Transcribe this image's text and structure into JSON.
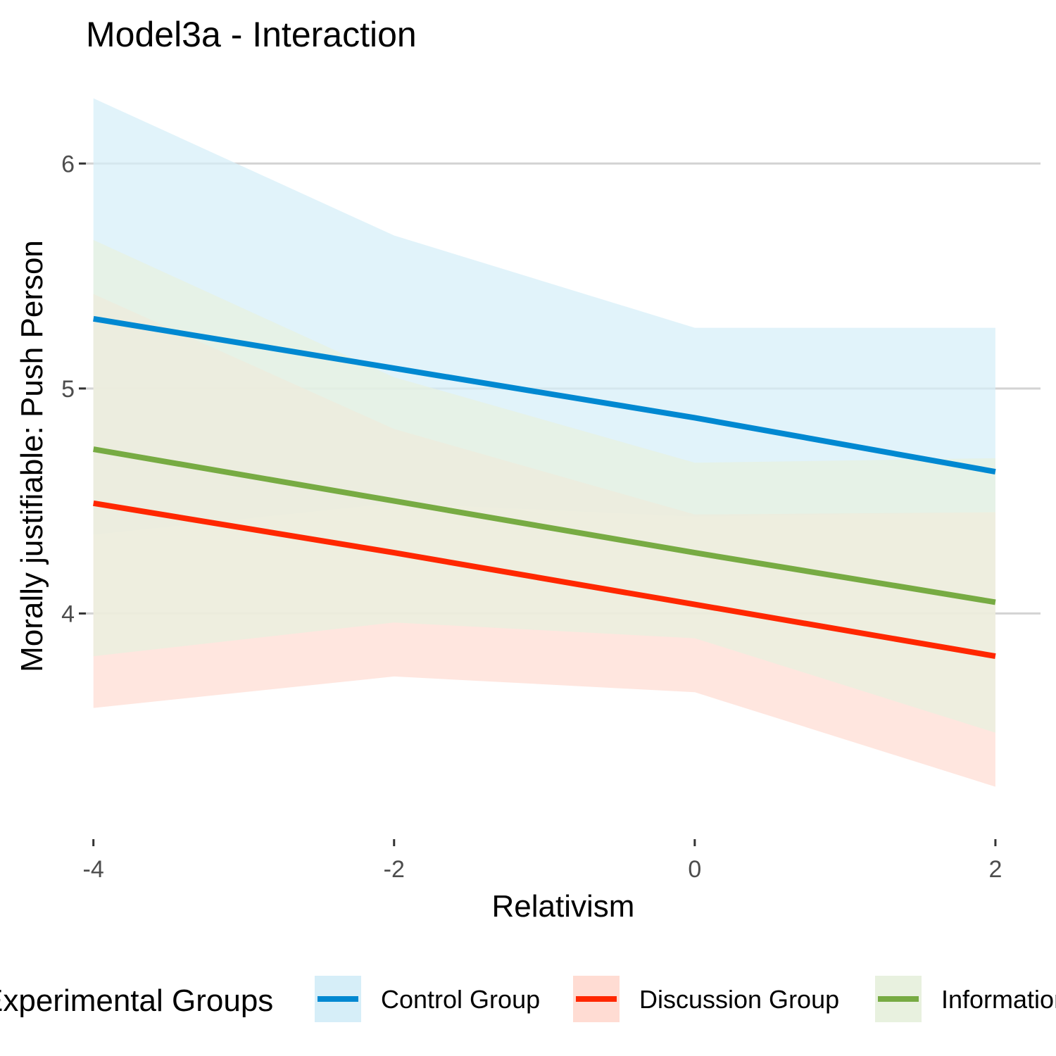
{
  "chart_data": {
    "type": "line",
    "title": "Model3a - Interaction",
    "xlabel": "Relativism",
    "ylabel": "Morally justifiable: Push Person",
    "x": [
      -4,
      -2,
      0,
      2
    ],
    "xlim": [
      -4.05,
      2.3
    ],
    "ylim": [
      3.05,
      6.32
    ],
    "x_ticks": [
      -4,
      -2,
      0,
      2
    ],
    "x_tick_labels": [
      "-4",
      "-2",
      "0",
      "2"
    ],
    "y_ticks": [
      4,
      5,
      6
    ],
    "y_tick_labels": [
      "4",
      "5",
      "6"
    ],
    "grid": "horizontal major",
    "legend": {
      "position": "bottom",
      "title": "Experimental Groups"
    },
    "series": [
      {
        "name": "Control Group",
        "color": "#0088d1",
        "fill": "#d6eef8",
        "values": [
          5.31,
          5.09,
          4.87,
          4.63
        ],
        "lower": [
          4.35,
          4.49,
          4.43,
          4.45
        ],
        "upper": [
          6.29,
          5.68,
          5.27,
          5.27
        ]
      },
      {
        "name": "Discussion Group",
        "color": "#ff2700",
        "fill": "#ffdcd3",
        "values": [
          4.49,
          4.27,
          4.04,
          3.81
        ],
        "lower": [
          3.58,
          3.72,
          3.65,
          3.23
        ],
        "upper": [
          5.42,
          4.82,
          4.44,
          4.45
        ]
      },
      {
        "name": "Information Group",
        "color": "#77ab43",
        "fill": "#e8f1df",
        "values": [
          4.73,
          4.5,
          4.27,
          4.05
        ],
        "lower": [
          3.81,
          3.96,
          3.89,
          3.47
        ],
        "upper": [
          5.66,
          5.05,
          4.67,
          4.69
        ]
      }
    ]
  }
}
